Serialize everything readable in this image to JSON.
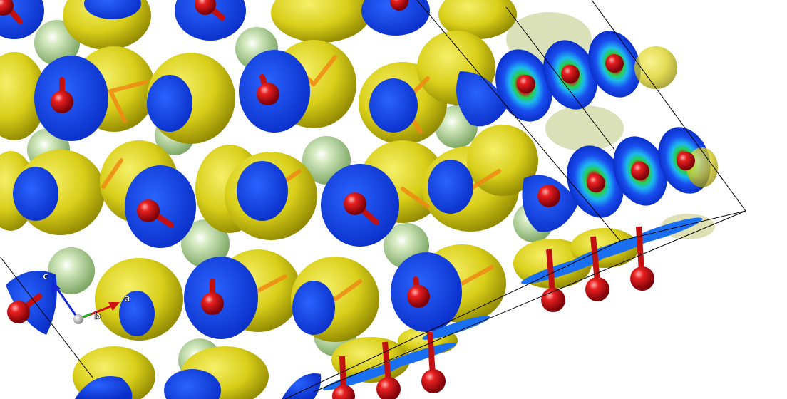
{
  "scene": {
    "background": "#ffffff",
    "colors": {
      "isosurface": "#d9cf1a",
      "isosurface_dark": "#8c8400",
      "isosurface_light": "#f6f06a",
      "bond_orange": "#f08a14",
      "oxygen_red": "#d8101a",
      "cap_blue": "#1040e8",
      "cap_cyan": "#1db8f0",
      "cap_green": "#24d24a",
      "sphere_green": "#b6d79c",
      "cell_line": "#000000"
    },
    "rows": [
      {
        "name": "row-1",
        "blue_caps": 4
      },
      {
        "name": "row-2",
        "blue_caps": 4,
        "gradient_caps": 3
      },
      {
        "name": "row-3",
        "blue_caps": 6,
        "gradient_caps": 3
      },
      {
        "name": "row-4",
        "blue_caps": 5
      },
      {
        "name": "row-5",
        "blue_caps": 3
      }
    ],
    "edge_oxygen_count": 6
  },
  "axes": {
    "a": {
      "label": "a",
      "color": "#d01010"
    },
    "b": {
      "label": "b",
      "color": "#18b018"
    },
    "c": {
      "label": "c",
      "color": "#1428d8"
    }
  }
}
